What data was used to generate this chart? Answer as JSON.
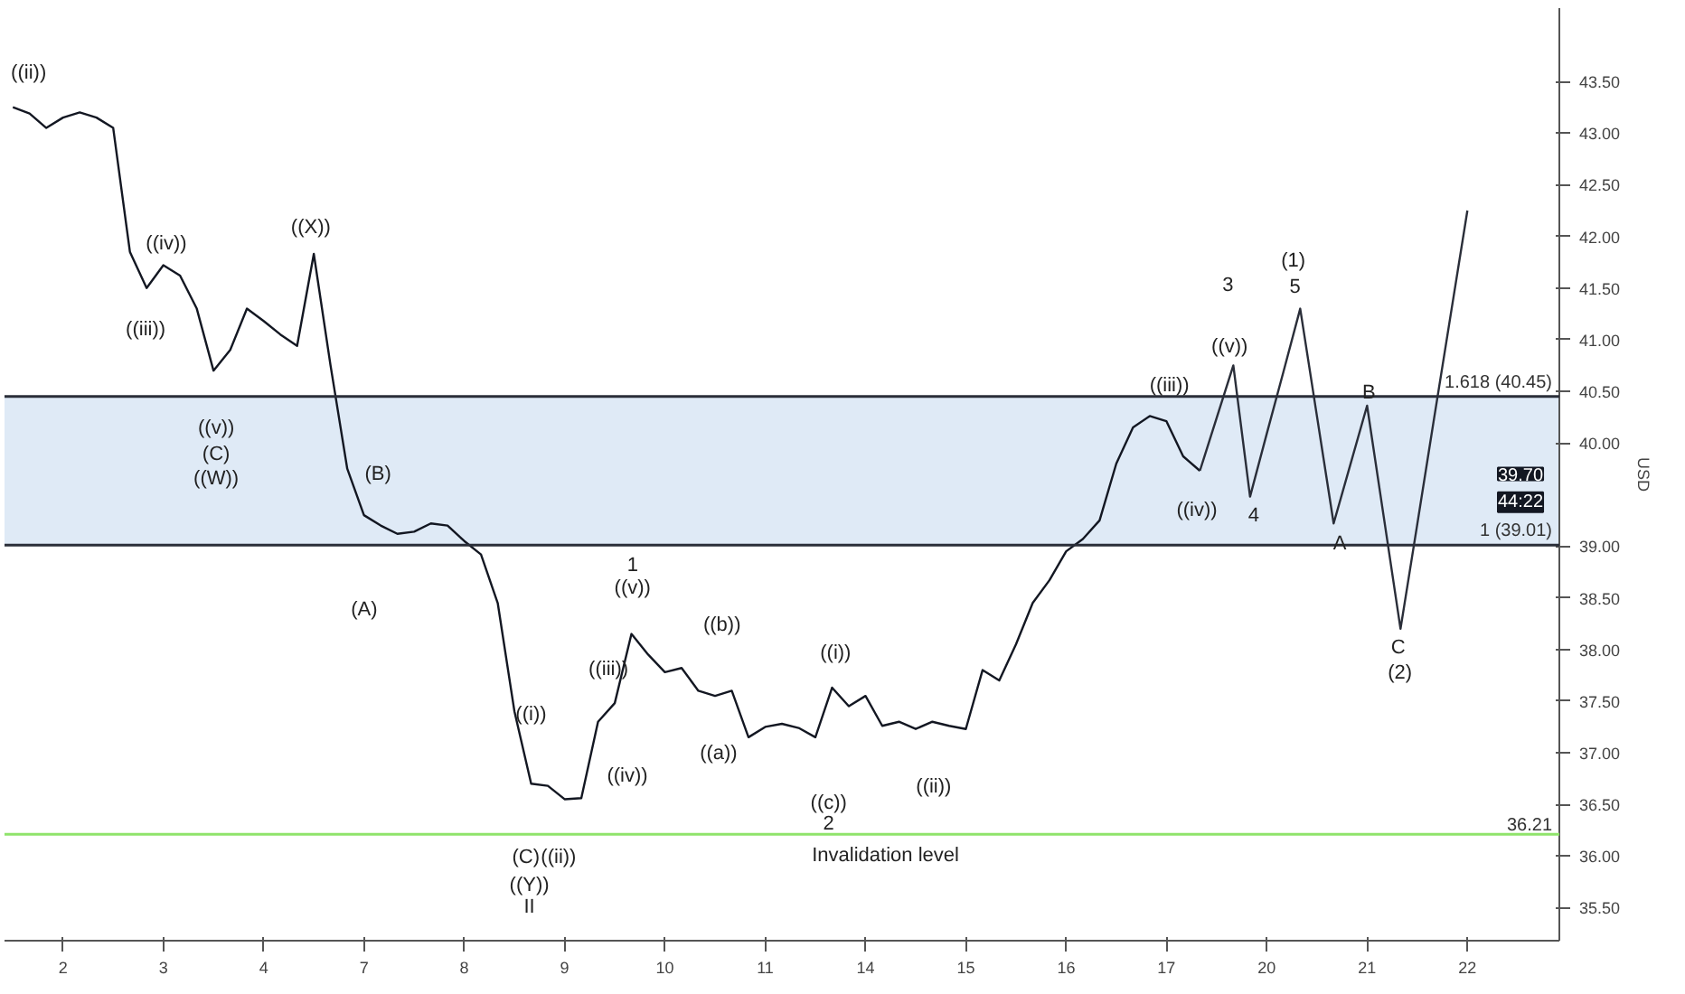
{
  "chart_data": {
    "type": "line",
    "ylabel": "USD",
    "categories": [
      null,
      null,
      null,
      "2",
      null,
      null,
      null,
      null,
      null,
      "3",
      null,
      null,
      null,
      null,
      null,
      "4",
      null,
      null,
      null,
      null,
      null,
      "7",
      null,
      null,
      null,
      null,
      null,
      "8",
      null,
      null,
      null,
      null,
      null,
      "9",
      null,
      null,
      null,
      null,
      null,
      "10",
      null,
      null,
      null,
      null,
      null,
      "11",
      null,
      null,
      null,
      null,
      null,
      "14",
      null,
      null,
      null,
      null,
      null,
      "15",
      null,
      null,
      null,
      null,
      null,
      "16",
      null,
      null,
      null,
      null,
      null,
      "17",
      null,
      null,
      null,
      null,
      null,
      "20",
      null,
      null,
      null,
      null,
      null,
      "21",
      null,
      null,
      null,
      null,
      null,
      "22"
    ],
    "ylim": [
      35.18,
      44.21
    ],
    "yticks": [
      {
        "value": 35.5,
        "label": "35.50"
      },
      {
        "value": 36,
        "label": "36.00"
      },
      {
        "value": 36.5,
        "label": "36.50"
      },
      {
        "value": 37,
        "label": "37.00"
      },
      {
        "value": 37.5,
        "label": "37.50"
      },
      {
        "value": 38,
        "label": "38.00"
      },
      {
        "value": 38.5,
        "label": "38.50"
      },
      {
        "value": 39,
        "label": "39.00"
      },
      {
        "value": 40,
        "label": "40.00"
      },
      {
        "value": 40.5,
        "label": "40.50"
      },
      {
        "value": 41,
        "label": "41.00"
      },
      {
        "value": 41.5,
        "label": "41.50"
      },
      {
        "value": 42,
        "label": "42.00"
      },
      {
        "value": 42.5,
        "label": "42.50"
      },
      {
        "value": 43,
        "label": "43.00"
      },
      {
        "value": 43.5,
        "label": "43.50"
      }
    ],
    "grid": false,
    "series": [
      {
        "color": "#131722",
        "values": [
          43.25,
          43.19,
          43.05,
          43.15,
          43.2,
          43.15,
          43.05,
          41.85,
          41.5,
          41.72,
          41.62,
          41.3,
          40.7,
          40.9,
          41.3,
          41.18,
          41.05,
          40.94,
          41.83,
          40.75,
          39.75,
          39.3,
          39.2,
          39.12,
          39.14,
          39.22,
          39.2,
          39.05,
          38.92,
          38.45,
          37.4,
          36.7,
          36.68,
          36.55,
          36.56,
          37.3,
          37.48,
          38.15,
          37.95,
          37.78,
          37.82,
          37.6,
          37.55,
          37.6,
          37.15,
          37.25,
          37.28,
          37.24,
          37.15,
          37.63,
          37.45,
          37.55,
          37.26,
          37.3,
          37.23,
          37.3,
          37.26,
          37.23,
          37.8,
          37.7,
          38.05,
          38.45,
          38.67,
          38.95,
          39.07,
          39.25,
          39.8,
          40.15,
          40.26,
          40.21,
          39.87,
          39.73,
          null,
          null,
          null,
          null,
          null,
          null,
          null,
          null,
          null,
          null,
          null,
          null,
          null,
          null,
          null,
          null
        ]
      },
      {
        "color": "#2a2e39",
        "values": [
          null,
          null,
          null,
          null,
          null,
          null,
          null,
          null,
          null,
          null,
          null,
          null,
          null,
          null,
          null,
          null,
          null,
          null,
          null,
          null,
          null,
          null,
          null,
          null,
          null,
          null,
          null,
          null,
          null,
          null,
          null,
          null,
          null,
          null,
          null,
          null,
          null,
          null,
          null,
          null,
          null,
          null,
          null,
          null,
          null,
          null,
          null,
          null,
          null,
          null,
          null,
          null,
          null,
          null,
          null,
          null,
          null,
          null,
          null,
          null,
          null,
          null,
          null,
          null,
          null,
          null,
          null,
          null,
          null,
          null,
          null,
          39.73,
          40.24,
          40.75,
          39.48,
          40.09,
          40.69,
          41.3,
          40.26,
          39.22,
          39.79,
          40.36,
          39.28,
          38.2,
          39.21,
          40.23,
          41.24,
          42.25
        ]
      }
    ],
    "bands": [
      {
        "axis": "y",
        "from": 39.01,
        "to": 40.45,
        "color": "#dbe8f5"
      }
    ],
    "ref_lines": [
      {
        "axis": "y",
        "value": 40.45,
        "label": "1.618 (40.45)",
        "color": "#2a2e39",
        "line_style": "solid"
      },
      {
        "axis": "y",
        "value": 39.01,
        "label": "1 (39.01)",
        "color": "#2a2e39",
        "line_style": "solid"
      },
      {
        "axis": "y",
        "value": 36.21,
        "label": "36.21",
        "color": "#8fe36b",
        "line_style": "solid"
      }
    ],
    "annotations": [
      "((ii))",
      "((iv))",
      "((iii))",
      "((v))",
      "(C)",
      "((W))",
      "((X))",
      "(B)",
      "(A)",
      "((i))",
      "(C)",
      "((ii))",
      "((Y))",
      "II",
      "((iii))",
      "((iv))",
      "1",
      "((v))",
      "((b))",
      "((a))",
      "((i))",
      "((c))",
      "2",
      "((ii))",
      "Invalidation level",
      "((iii))",
      "((iv))",
      "3",
      "((v))",
      "4",
      "(1)",
      "5",
      "A",
      "B",
      "C",
      "(2)",
      "39.70",
      "44:22"
    ]
  }
}
